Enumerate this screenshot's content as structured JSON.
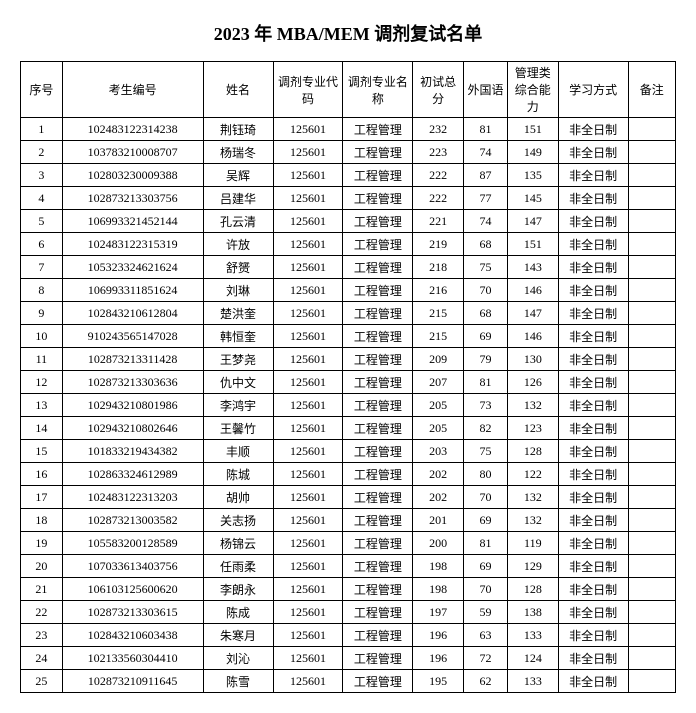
{
  "title": "2023 年 MBA/MEM 调剂复试名单",
  "columns": [
    "序号",
    "考生编号",
    "姓名",
    "调剂专业代码",
    "调剂专业名称",
    "初试总分",
    "外国语",
    "管理类综合能力",
    "学习方式",
    "备注"
  ],
  "rows": [
    [
      "1",
      "102483122314238",
      "荆钰琦",
      "125601",
      "工程管理",
      "232",
      "81",
      "151",
      "非全日制",
      ""
    ],
    [
      "2",
      "103783210008707",
      "杨瑞冬",
      "125601",
      "工程管理",
      "223",
      "74",
      "149",
      "非全日制",
      ""
    ],
    [
      "3",
      "102803230009388",
      "吴辉",
      "125601",
      "工程管理",
      "222",
      "87",
      "135",
      "非全日制",
      ""
    ],
    [
      "4",
      "102873213303756",
      "吕建华",
      "125601",
      "工程管理",
      "222",
      "77",
      "145",
      "非全日制",
      ""
    ],
    [
      "5",
      "106993321452144",
      "孔云清",
      "125601",
      "工程管理",
      "221",
      "74",
      "147",
      "非全日制",
      ""
    ],
    [
      "6",
      "102483122315319",
      "许放",
      "125601",
      "工程管理",
      "219",
      "68",
      "151",
      "非全日制",
      ""
    ],
    [
      "7",
      "105323324621624",
      "舒赟",
      "125601",
      "工程管理",
      "218",
      "75",
      "143",
      "非全日制",
      ""
    ],
    [
      "8",
      "106993311851624",
      "刘琳",
      "125601",
      "工程管理",
      "216",
      "70",
      "146",
      "非全日制",
      ""
    ],
    [
      "9",
      "102843210612804",
      "楚洪奎",
      "125601",
      "工程管理",
      "215",
      "68",
      "147",
      "非全日制",
      ""
    ],
    [
      "10",
      "910243565147028",
      "韩恒奎",
      "125601",
      "工程管理",
      "215",
      "69",
      "146",
      "非全日制",
      ""
    ],
    [
      "11",
      "102873213311428",
      "王梦尧",
      "125601",
      "工程管理",
      "209",
      "79",
      "130",
      "非全日制",
      ""
    ],
    [
      "12",
      "102873213303636",
      "仇中文",
      "125601",
      "工程管理",
      "207",
      "81",
      "126",
      "非全日制",
      ""
    ],
    [
      "13",
      "102943210801986",
      "李鸿宇",
      "125601",
      "工程管理",
      "205",
      "73",
      "132",
      "非全日制",
      ""
    ],
    [
      "14",
      "102943210802646",
      "王馨竹",
      "125601",
      "工程管理",
      "205",
      "82",
      "123",
      "非全日制",
      ""
    ],
    [
      "15",
      "101833219434382",
      "丰顺",
      "125601",
      "工程管理",
      "203",
      "75",
      "128",
      "非全日制",
      ""
    ],
    [
      "16",
      "102863324612989",
      "陈城",
      "125601",
      "工程管理",
      "202",
      "80",
      "122",
      "非全日制",
      ""
    ],
    [
      "17",
      "102483122313203",
      "胡帅",
      "125601",
      "工程管理",
      "202",
      "70",
      "132",
      "非全日制",
      ""
    ],
    [
      "18",
      "102873213003582",
      "关志扬",
      "125601",
      "工程管理",
      "201",
      "69",
      "132",
      "非全日制",
      ""
    ],
    [
      "19",
      "105583200128589",
      "杨锦云",
      "125601",
      "工程管理",
      "200",
      "81",
      "119",
      "非全日制",
      ""
    ],
    [
      "20",
      "107033613403756",
      "任雨柔",
      "125601",
      "工程管理",
      "198",
      "69",
      "129",
      "非全日制",
      ""
    ],
    [
      "21",
      "106103125600620",
      "李朗永",
      "125601",
      "工程管理",
      "198",
      "70",
      "128",
      "非全日制",
      ""
    ],
    [
      "22",
      "102873213303615",
      "陈成",
      "125601",
      "工程管理",
      "197",
      "59",
      "138",
      "非全日制",
      ""
    ],
    [
      "23",
      "102843210603438",
      "朱寒月",
      "125601",
      "工程管理",
      "196",
      "63",
      "133",
      "非全日制",
      ""
    ],
    [
      "24",
      "102133560304410",
      "刘沁",
      "125601",
      "工程管理",
      "196",
      "72",
      "124",
      "非全日制",
      ""
    ],
    [
      "25",
      "102873210911645",
      "陈雪",
      "125601",
      "工程管理",
      "195",
      "62",
      "133",
      "非全日制",
      ""
    ]
  ]
}
